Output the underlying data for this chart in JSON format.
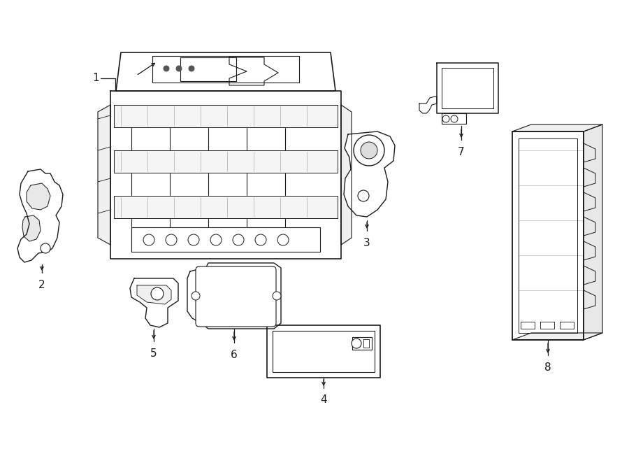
{
  "bg_color": "#ffffff",
  "lc": "#1a1a1a",
  "lw": 0.9,
  "fig_w": 9.0,
  "fig_h": 6.62,
  "dpi": 100,
  "xlim": [
    0,
    900
  ],
  "ylim": [
    0,
    662
  ]
}
